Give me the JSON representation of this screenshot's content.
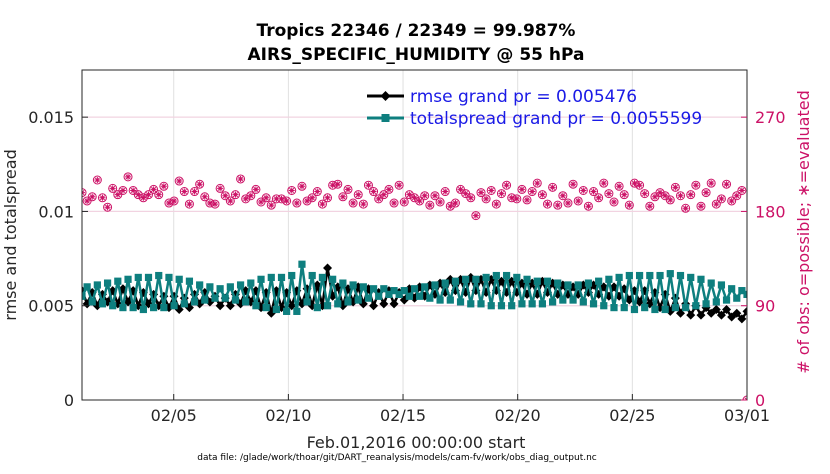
{
  "chart_data": {
    "type": "line",
    "title_line1": "Tropics 22346 / 22349 = 99.987%",
    "title_line2": "AIRS_SPECIFIC_HUMIDITY @ 55 hPa",
    "xlabel": "Feb.01,2016 00:00:00 start",
    "ylabel_left": "rmse and totalspread",
    "ylabel_right": "# of obs: o=possible; ∗=evaluated",
    "footer": "data file: /glade/work/thoar/git/DART_reanalysis/models/cam-fv/work/obs_diag_output.nc",
    "x_range_days": [
      1,
      30
    ],
    "x_ticks": [
      {
        "day": 5,
        "label": "02/05"
      },
      {
        "day": 10,
        "label": "02/10"
      },
      {
        "day": 15,
        "label": "02/15"
      },
      {
        "day": 20,
        "label": "02/20"
      },
      {
        "day": 25,
        "label": "02/25"
      },
      {
        "day": 30,
        "label": "03/01"
      }
    ],
    "ylim_left": [
      0,
      0.0175
    ],
    "y_ticks_left": [
      {
        "value": 0,
        "label": "0"
      },
      {
        "value": 0.005,
        "label": "0.005"
      },
      {
        "value": 0.01,
        "label": "0.01"
      },
      {
        "value": 0.015,
        "label": "0.015"
      }
    ],
    "ylim_right": [
      0,
      315
    ],
    "y_ticks_right": [
      {
        "value": 0,
        "label": "0"
      },
      {
        "value": 90,
        "label": "90"
      },
      {
        "value": 180,
        "label": "180"
      },
      {
        "value": 270,
        "label": "270"
      }
    ],
    "series": [
      {
        "name": "rmse grand pr = 0.005476",
        "color": "#000000",
        "marker": "diamond",
        "values": [
          0.0058,
          0.0051,
          0.0057,
          0.005,
          0.0056,
          0.0052,
          0.0058,
          0.0051,
          0.0059,
          0.0052,
          0.0058,
          0.005,
          0.0057,
          0.0051,
          0.0056,
          0.005,
          0.0055,
          0.0049,
          0.0055,
          0.0048,
          0.0054,
          0.0049,
          0.0056,
          0.0051,
          0.0057,
          0.0052,
          0.0055,
          0.005,
          0.0054,
          0.005,
          0.0056,
          0.0051,
          0.0058,
          0.0052,
          0.0058,
          0.0049,
          0.0057,
          0.0046,
          0.0058,
          0.0049,
          0.0057,
          0.005,
          0.0058,
          0.0051,
          0.0059,
          0.005,
          0.0061,
          0.005,
          0.007,
          0.0055,
          0.006,
          0.005,
          0.0059,
          0.0052,
          0.006,
          0.0051,
          0.0059,
          0.005,
          0.0057,
          0.0051,
          0.0058,
          0.0051,
          0.0057,
          0.0053,
          0.0059,
          0.0054,
          0.006,
          0.0055,
          0.0061,
          0.0056,
          0.0062,
          0.0057,
          0.0064,
          0.0058,
          0.0064,
          0.0057,
          0.0065,
          0.0058,
          0.0064,
          0.0057,
          0.0064,
          0.0058,
          0.0063,
          0.0057,
          0.0063,
          0.0057,
          0.0062,
          0.0056,
          0.0062,
          0.0056,
          0.0063,
          0.0057,
          0.0062,
          0.0056,
          0.0061,
          0.0056,
          0.006,
          0.0056,
          0.0061,
          0.0057,
          0.0061,
          0.0056,
          0.006,
          0.0055,
          0.006,
          0.0055,
          0.0059,
          0.0053,
          0.0058,
          0.0052,
          0.0058,
          0.0051,
          0.0057,
          0.0049,
          0.0056,
          0.0047,
          0.0054,
          0.0046,
          0.0051,
          0.0045,
          0.005,
          0.0045,
          0.0049,
          0.0046,
          0.0048,
          0.0045,
          0.0048,
          0.0044,
          0.0046,
          0.0043,
          0.0047
        ],
        "values_note": "daily pairs from Feb 01 through Mar 01, two points per day plus end"
      },
      {
        "name": "totalspread grand pr = 0.0055599",
        "color": "#0e7f7f",
        "marker": "square",
        "values": [
          0.0055,
          0.006,
          0.0052,
          0.0061,
          0.0051,
          0.0062,
          0.005,
          0.0063,
          0.0049,
          0.0064,
          0.0049,
          0.0065,
          0.0048,
          0.0065,
          0.0049,
          0.0066,
          0.0049,
          0.0065,
          0.005,
          0.0064,
          0.0051,
          0.0063,
          0.0052,
          0.0061,
          0.0053,
          0.006,
          0.0054,
          0.0059,
          0.0054,
          0.006,
          0.0053,
          0.0061,
          0.0052,
          0.0062,
          0.005,
          0.0064,
          0.0049,
          0.0065,
          0.0048,
          0.0065,
          0.0047,
          0.0066,
          0.0047,
          0.0072,
          0.0052,
          0.0066,
          0.0049,
          0.0065,
          0.005,
          0.0064,
          0.0051,
          0.0062,
          0.0052,
          0.0061,
          0.0053,
          0.006,
          0.0054,
          0.0059,
          0.0055,
          0.0059,
          0.0056,
          0.0058,
          0.0056,
          0.0058,
          0.0055,
          0.0059,
          0.0055,
          0.006,
          0.0054,
          0.0061,
          0.0053,
          0.0062,
          0.0053,
          0.0063,
          0.0052,
          0.0064,
          0.0051,
          0.0064,
          0.0051,
          0.0065,
          0.005,
          0.0066,
          0.005,
          0.0066,
          0.005,
          0.0065,
          0.0051,
          0.0064,
          0.0051,
          0.0063,
          0.0051,
          0.0063,
          0.0052,
          0.0062,
          0.0053,
          0.0061,
          0.0053,
          0.0061,
          0.0052,
          0.0062,
          0.0051,
          0.0063,
          0.005,
          0.0064,
          0.0049,
          0.0065,
          0.0049,
          0.0066,
          0.0048,
          0.0066,
          0.0049,
          0.0066,
          0.0048,
          0.0066,
          0.0048,
          0.0067,
          0.0049,
          0.0066,
          0.0049,
          0.0065,
          0.005,
          0.0064,
          0.0051,
          0.0062,
          0.0052,
          0.0061,
          0.0053,
          0.0059,
          0.0054,
          0.0058,
          0.0056
        ]
      },
      {
        "name": "obs count",
        "axis": "right",
        "color": "#cc1166",
        "marker": "circle-star",
        "values": [
          198,
          190,
          194,
          210,
          193,
          184,
          202,
          196,
          200,
          213,
          200,
          196,
          193,
          196,
          201,
          196,
          204,
          188,
          190,
          209,
          199,
          187,
          199,
          206,
          194,
          188,
          187,
          202,
          195,
          190,
          196,
          211,
          192,
          195,
          201,
          189,
          193,
          186,
          192,
          192,
          190,
          200,
          188,
          204,
          190,
          193,
          199,
          187,
          193,
          205,
          206,
          194,
          201,
          188,
          196,
          187,
          205,
          199,
          192,
          196,
          201,
          188,
          205,
          189,
          196,
          193,
          190,
          195,
          186,
          195,
          189,
          199,
          185,
          188,
          201,
          197,
          193,
          176,
          198,
          192,
          200,
          187,
          197,
          205,
          193,
          192,
          201,
          191,
          199,
          207,
          196,
          187,
          203,
          186,
          195,
          188,
          206,
          190,
          200,
          185,
          199,
          193,
          207,
          197,
          189,
          204,
          196,
          186,
          207,
          205,
          197,
          185,
          194,
          198,
          195,
          191,
          203,
          195,
          183,
          196,
          205,
          185,
          198,
          207,
          187,
          192,
          206,
          190,
          195,
          200,
          0
        ],
        "marker_tail_note": "final point at zero on right axis"
      }
    ]
  }
}
